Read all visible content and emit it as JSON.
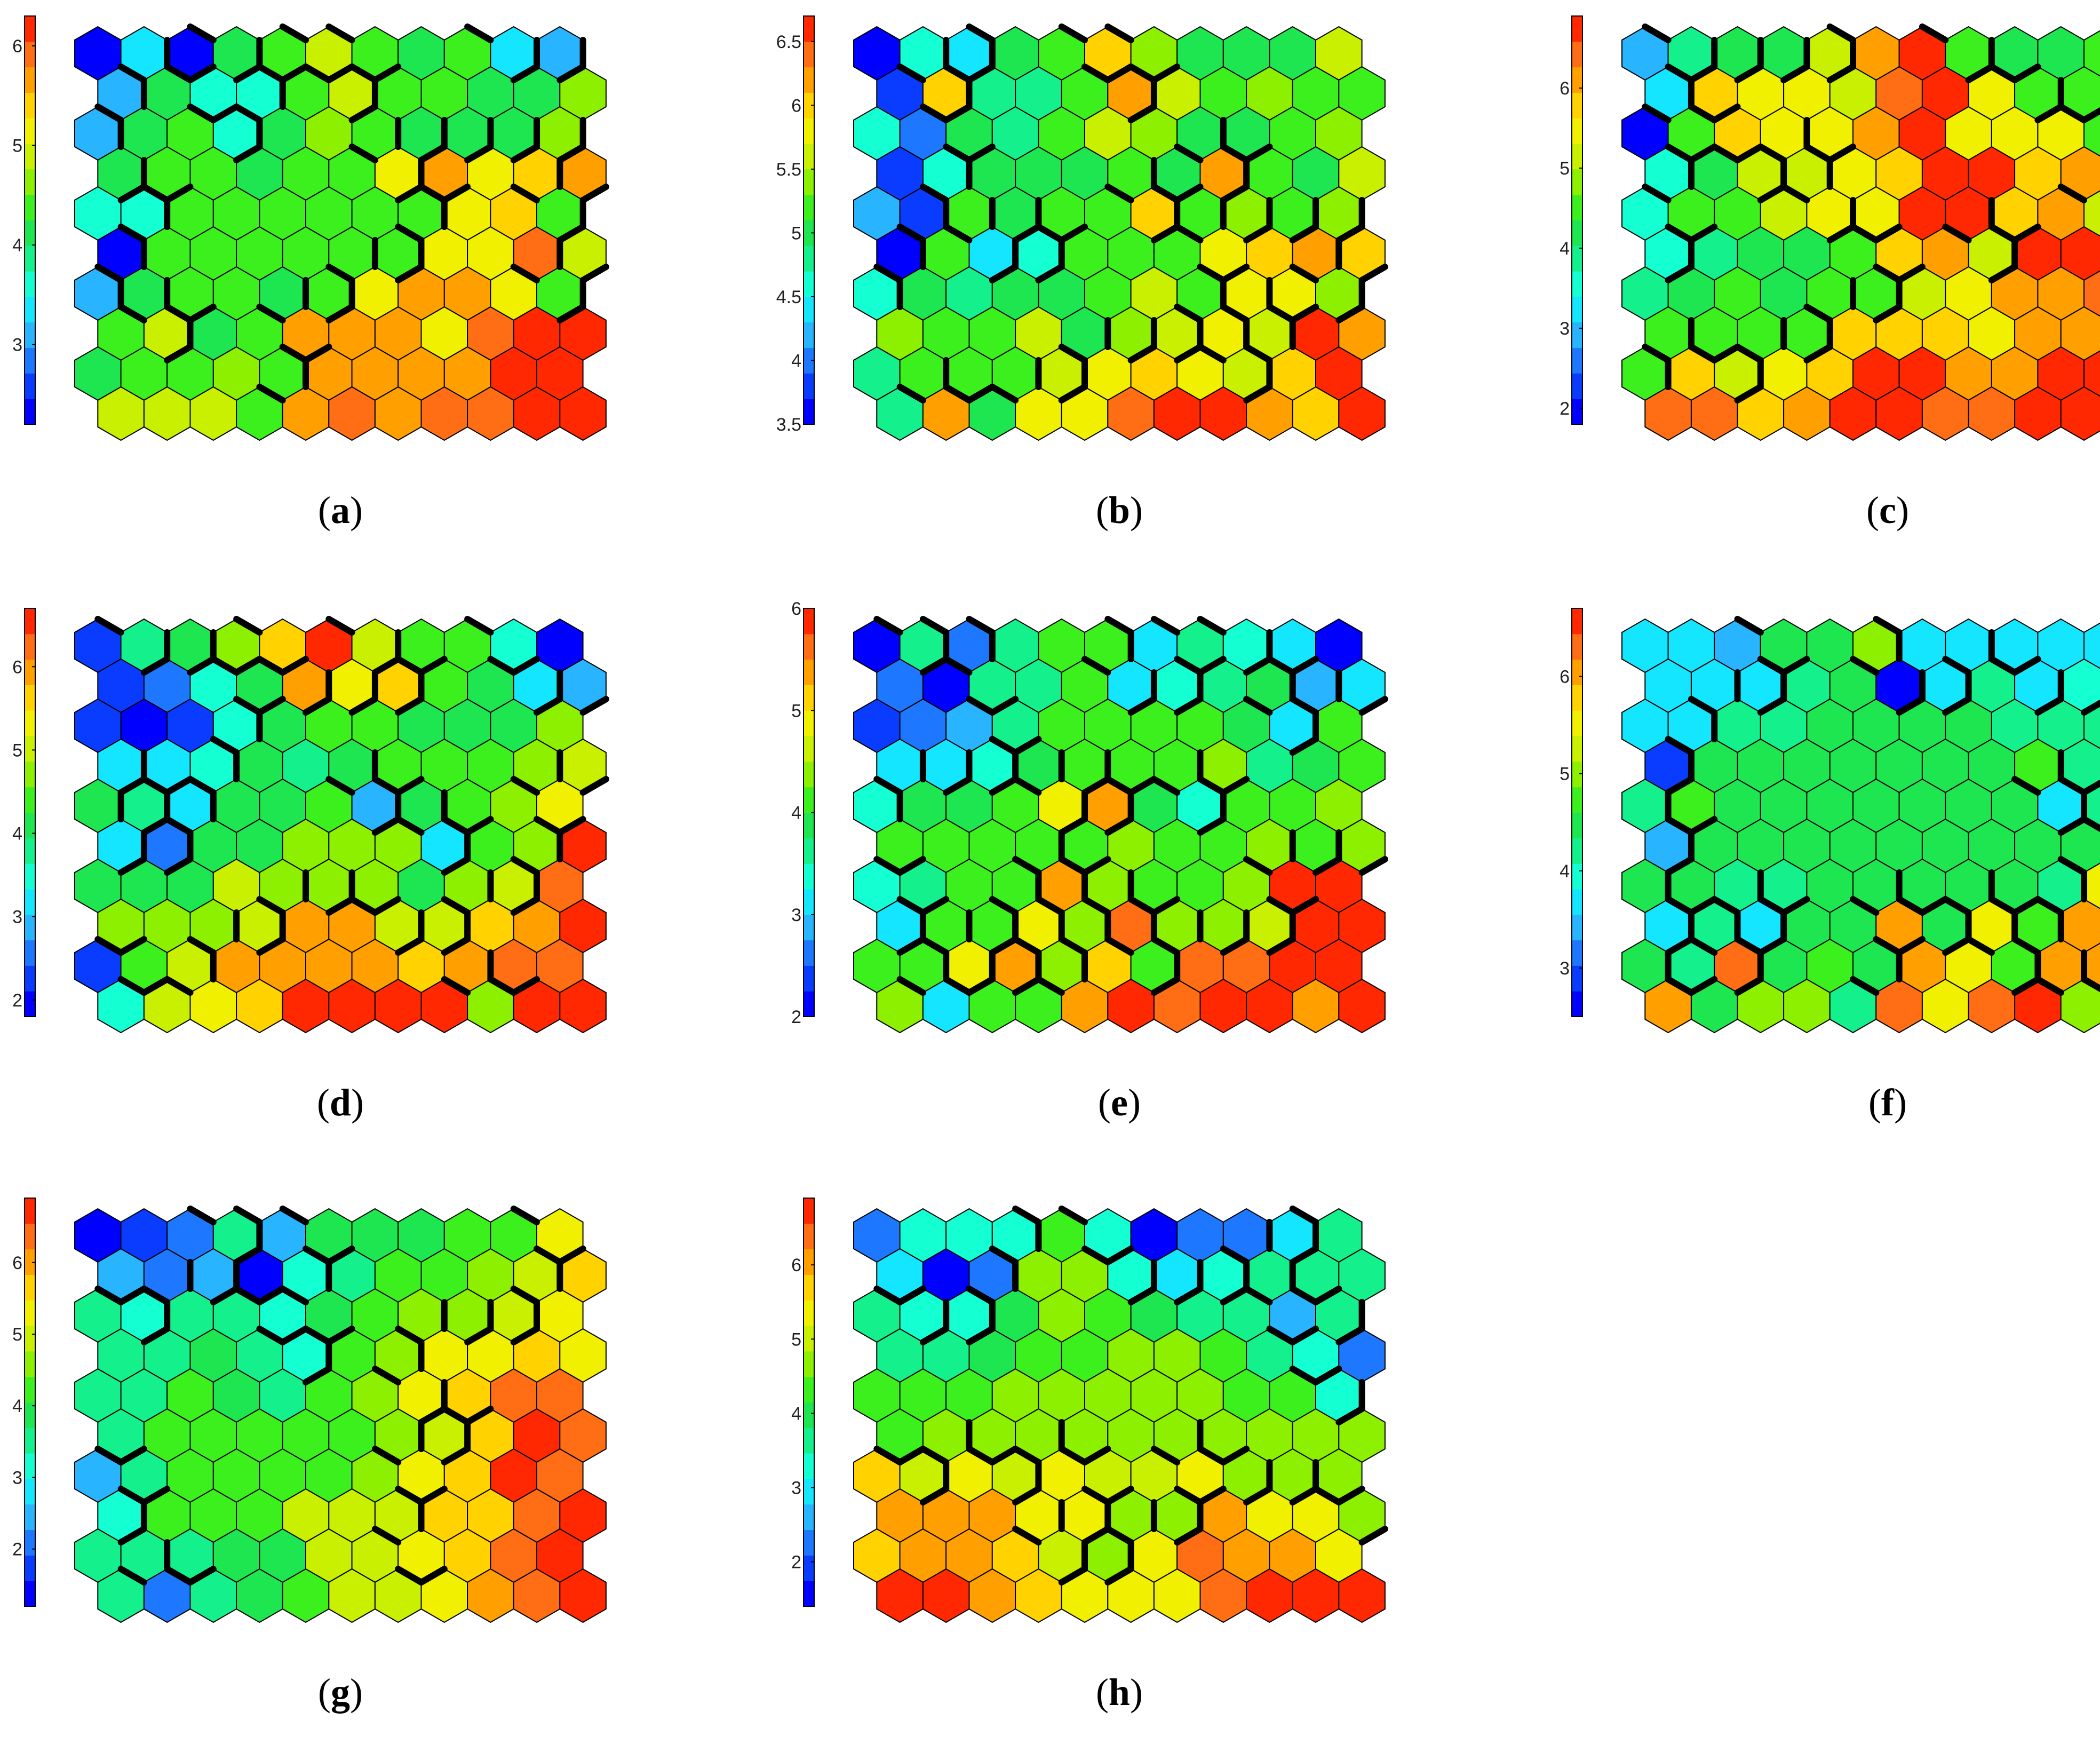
{
  "colormap": [
    "#0000ff",
    "#0a3cff",
    "#1e78ff",
    "#28b4ff",
    "#14e6ff",
    "#14ffd2",
    "#14f08c",
    "#1ee650",
    "#3cf01e",
    "#8cf000",
    "#c8f000",
    "#f0f000",
    "#ffd200",
    "#ffa000",
    "#ff6e14",
    "#ff2800"
  ],
  "boundary_color": "#000000",
  "panels": [
    {
      "id": "a",
      "caption": "a",
      "min": 2.2,
      "max": 6.3,
      "ticks": [
        "3",
        "4",
        "5",
        "6"
      ],
      "tick_values": [
        3,
        4,
        5,
        6
      ],
      "grid": [
        [
          2.2,
          3.3,
          2.2,
          4.2,
          4.5,
          5.0,
          4.5,
          4.0,
          4.5,
          3.3,
          3.0
        ],
        [
          3.0,
          4.0,
          3.6,
          3.6,
          4.5,
          5.0,
          4.5,
          4.5,
          4.2,
          4.0,
          4.6
        ],
        [
          3.0,
          4.0,
          4.3,
          3.6,
          4.2,
          4.6,
          4.5,
          4.2,
          4.0,
          4.2,
          4.6
        ],
        [
          4.0,
          4.3,
          4.3,
          4.0,
          4.3,
          4.4,
          5.2,
          5.6,
          5.2,
          5.5,
          5.6
        ],
        [
          3.6,
          3.6,
          4.3,
          4.3,
          4.4,
          4.4,
          4.5,
          4.4,
          5.2,
          5.3,
          4.4
        ],
        [
          2.2,
          4.4,
          4.4,
          4.4,
          4.5,
          4.5,
          4.5,
          5.2,
          5.2,
          5.8,
          5.0
        ],
        [
          3.0,
          4.0,
          4.4,
          4.4,
          4.0,
          4.5,
          5.2,
          5.6,
          5.7,
          5.2,
          4.5
        ],
        [
          4.4,
          5.0,
          4.2,
          4.4,
          5.6,
          5.7,
          5.6,
          5.2,
          5.8,
          6.2,
          6.3
        ],
        [
          4.0,
          4.4,
          4.4,
          4.6,
          4.4,
          5.7,
          5.6,
          5.7,
          5.7,
          6.2,
          6.3
        ],
        [
          4.8,
          4.8,
          4.8,
          4.5,
          5.6,
          5.9,
          5.6,
          5.9,
          5.8,
          6.3,
          6.3
        ]
      ]
    },
    {
      "id": "b",
      "caption": "b",
      "min": 3.5,
      "max": 6.7,
      "ticks": [
        "3.5",
        "4",
        "4.5",
        "5",
        "5.5",
        "6",
        "6.5"
      ],
      "tick_values": [
        3.5,
        4,
        4.5,
        5,
        5.5,
        6,
        6.5
      ],
      "grid": [
        [
          3.5,
          4.6,
          4.4,
          5.0,
          5.2,
          6.1,
          5.4,
          5.0,
          5.1,
          5.0,
          5.6
        ],
        [
          3.7,
          6.0,
          4.8,
          4.8,
          5.3,
          6.3,
          5.5,
          5.2,
          5.4,
          5.2,
          5.2
        ],
        [
          4.6,
          4.0,
          5.0,
          4.8,
          5.3,
          5.5,
          5.4,
          5.0,
          5.0,
          5.2,
          5.4
        ],
        [
          3.7,
          4.6,
          5.0,
          5.0,
          5.0,
          5.3,
          5.0,
          6.3,
          5.2,
          5.0,
          5.6
        ],
        [
          4.2,
          3.8,
          5.2,
          5.0,
          5.2,
          5.2,
          6.0,
          5.2,
          5.4,
          5.2,
          5.4
        ],
        [
          3.6,
          5.2,
          4.4,
          4.6,
          5.2,
          5.2,
          5.2,
          5.8,
          6.1,
          6.2,
          6.1
        ],
        [
          4.6,
          5.0,
          4.8,
          5.0,
          5.0,
          5.2,
          5.6,
          5.2,
          5.8,
          5.7,
          5.4
        ],
        [
          5.4,
          5.2,
          5.2,
          5.5,
          5.0,
          5.4,
          5.5,
          5.8,
          5.6,
          6.5,
          6.3
        ],
        [
          4.8,
          5.2,
          5.2,
          5.2,
          5.5,
          5.8,
          6.0,
          5.8,
          5.6,
          6.1,
          6.6
        ],
        [
          4.8,
          6.3,
          5.0,
          5.8,
          5.8,
          6.4,
          6.5,
          6.7,
          6.3,
          6.0,
          6.7
        ]
      ]
    },
    {
      "id": "c",
      "caption": "c",
      "min": 1.8,
      "max": 6.9,
      "ticks": [
        "2",
        "3",
        "4",
        "5",
        "6"
      ],
      "tick_values": [
        2,
        3,
        4,
        5,
        6
      ],
      "grid": [
        [
          2.8,
          3.8,
          4.3,
          4.2,
          5.2,
          6.0,
          6.6,
          4.6,
          4.2,
          4.3,
          4.6
        ],
        [
          3.3,
          5.8,
          5.6,
          5.6,
          5.3,
          6.3,
          6.9,
          5.5,
          4.4,
          4.4,
          5.0
        ],
        [
          1.9,
          4.6,
          5.8,
          5.6,
          5.6,
          6.2,
          6.6,
          5.4,
          5.4,
          5.4,
          4.6
        ],
        [
          3.4,
          4.2,
          5.3,
          5.0,
          5.6,
          5.9,
          6.6,
          6.6,
          5.8,
          6.2,
          6.6
        ],
        [
          3.6,
          4.4,
          4.6,
          5.0,
          5.6,
          5.6,
          6.9,
          6.6,
          5.7,
          6.2,
          5.0
        ],
        [
          3.6,
          4.0,
          4.3,
          4.3,
          4.6,
          5.8,
          6.2,
          5.0,
          6.6,
          6.8,
          6.9
        ],
        [
          3.8,
          4.3,
          4.4,
          4.3,
          4.6,
          4.6,
          5.3,
          5.4,
          6.2,
          6.2,
          6.4
        ],
        [
          4.4,
          4.4,
          4.4,
          4.4,
          5.8,
          5.8,
          5.8,
          5.6,
          6.0,
          6.2,
          6.8
        ],
        [
          4.6,
          5.8,
          5.2,
          5.4,
          5.8,
          6.6,
          6.6,
          6.2,
          6.2,
          6.6,
          6.8
        ],
        [
          6.4,
          6.4,
          5.8,
          6.2,
          6.9,
          6.6,
          6.3,
          6.4,
          6.8,
          6.8,
          6.9
        ]
      ]
    },
    {
      "id": "d",
      "caption": "d",
      "min": 1.8,
      "max": 6.7,
      "ticks": [
        "2",
        "3",
        "4",
        "5",
        "6"
      ],
      "tick_values": [
        2,
        3,
        4,
        5,
        6
      ],
      "grid": [
        [
          2.4,
          3.8,
          4.2,
          4.6,
          5.6,
          6.6,
          5.0,
          4.4,
          4.5,
          3.4,
          2.0
        ],
        [
          2.4,
          2.6,
          3.6,
          4.0,
          6.0,
          5.2,
          5.6,
          4.4,
          4.0,
          3.2,
          2.8
        ],
        [
          2.4,
          2.0,
          2.4,
          3.4,
          4.2,
          4.4,
          4.4,
          4.2,
          4.0,
          4.0,
          4.6
        ],
        [
          3.2,
          3.2,
          3.4,
          4.2,
          3.8,
          4.2,
          4.4,
          4.4,
          4.4,
          4.8,
          5.0
        ],
        [
          4.0,
          3.8,
          3.2,
          4.2,
          4.0,
          4.4,
          3.0,
          4.2,
          4.4,
          4.8,
          5.4
        ],
        [
          3.2,
          2.6,
          4.2,
          4.2,
          4.6,
          4.8,
          4.6,
          3.2,
          4.4,
          4.6,
          6.4
        ],
        [
          4.0,
          4.2,
          4.2,
          5.0,
          4.6,
          4.6,
          4.8,
          4.2,
          4.8,
          5.0,
          6.2
        ],
        [
          4.6,
          4.6,
          4.8,
          5.0,
          5.8,
          6.0,
          5.0,
          5.0,
          5.6,
          6.0,
          6.7
        ],
        [
          2.4,
          4.4,
          5.0,
          6.0,
          5.8,
          6.0,
          6.0,
          5.6,
          5.8,
          6.2,
          6.2
        ],
        [
          3.6,
          5.0,
          5.2,
          5.6,
          6.6,
          6.4,
          6.4,
          6.7,
          4.8,
          6.7,
          6.7
        ]
      ]
    },
    {
      "id": "e",
      "caption": "e",
      "min": 2.0,
      "max": 6.0,
      "ticks": [
        "2",
        "3",
        "4",
        "5",
        "6"
      ],
      "tick_values": [
        2,
        3,
        4,
        5,
        6
      ],
      "grid": [
        [
          2.0,
          3.6,
          2.6,
          3.6,
          4.2,
          4.2,
          3.2,
          3.6,
          3.4,
          3.2,
          2.0
        ],
        [
          2.6,
          2.0,
          3.6,
          3.6,
          4.0,
          3.2,
          3.4,
          3.6,
          3.8,
          2.8,
          3.2
        ],
        [
          2.4,
          2.6,
          2.8,
          3.6,
          4.0,
          4.2,
          4.2,
          4.2,
          3.8,
          3.2,
          4.0
        ],
        [
          3.2,
          3.2,
          3.4,
          3.8,
          4.0,
          4.2,
          4.2,
          4.4,
          3.6,
          3.8,
          4.2
        ],
        [
          3.4,
          3.8,
          3.8,
          4.2,
          4.8,
          5.4,
          3.8,
          3.4,
          4.2,
          4.0,
          4.4
        ],
        [
          4.0,
          4.2,
          4.0,
          4.0,
          4.2,
          4.4,
          4.2,
          4.2,
          4.4,
          4.2,
          4.4
        ],
        [
          3.4,
          3.6,
          4.0,
          4.2,
          5.4,
          4.4,
          4.0,
          4.0,
          4.4,
          5.8,
          6.0
        ],
        [
          3.2,
          4.2,
          4.0,
          4.8,
          4.4,
          5.6,
          4.4,
          4.4,
          4.6,
          5.8,
          5.8
        ],
        [
          4.0,
          4.2,
          4.8,
          5.4,
          4.4,
          5.0,
          4.2,
          5.6,
          5.6,
          6.0,
          6.0
        ],
        [
          4.4,
          3.2,
          4.2,
          4.0,
          5.4,
          6.0,
          5.6,
          5.8,
          6.0,
          5.4,
          6.0
        ]
      ]
    },
    {
      "id": "f",
      "caption": "f",
      "min": 2.5,
      "max": 6.7,
      "ticks": [
        "3",
        "4",
        "5",
        "6"
      ],
      "tick_values": [
        3,
        4,
        5,
        6
      ],
      "grid": [
        [
          3.8,
          3.6,
          3.4,
          4.6,
          4.6,
          5.0,
          3.6,
          3.8,
          3.8,
          3.8,
          3.8
        ],
        [
          3.8,
          3.8,
          3.8,
          4.2,
          4.6,
          2.5,
          3.6,
          4.2,
          3.8,
          4.0,
          3.8
        ],
        [
          3.6,
          3.6,
          4.2,
          4.2,
          4.6,
          4.6,
          4.6,
          4.6,
          4.2,
          4.2,
          4.2
        ],
        [
          3.0,
          4.6,
          4.6,
          4.6,
          4.6,
          4.6,
          4.6,
          4.4,
          4.8,
          4.2,
          4.4
        ],
        [
          4.2,
          4.8,
          4.6,
          4.4,
          4.6,
          4.6,
          4.6,
          4.4,
          4.6,
          3.6,
          4.2
        ],
        [
          3.4,
          4.6,
          4.4,
          4.4,
          4.6,
          4.6,
          4.6,
          4.6,
          4.4,
          4.4,
          5.8
        ],
        [
          4.4,
          4.4,
          4.2,
          4.2,
          4.4,
          4.4,
          4.4,
          4.4,
          4.4,
          4.2,
          5.4
        ],
        [
          3.6,
          4.2,
          3.8,
          4.4,
          4.6,
          6.0,
          4.6,
          5.6,
          4.8,
          6.0,
          5.6
        ],
        [
          4.4,
          4.2,
          6.2,
          4.6,
          4.8,
          4.6,
          6.0,
          5.4,
          4.8,
          6.0,
          6.0
        ],
        [
          6.0,
          4.4,
          5.0,
          5.0,
          4.2,
          6.2,
          5.6,
          6.2,
          6.6,
          5.0,
          6.7
        ]
      ]
    },
    {
      "id": "g",
      "caption": "g",
      "min": 1.2,
      "max": 6.9,
      "ticks": [
        "2",
        "3",
        "4",
        "5",
        "6"
      ],
      "tick_values": [
        2,
        3,
        4,
        5,
        6
      ],
      "grid": [
        [
          1.2,
          1.8,
          2.0,
          3.4,
          2.6,
          3.8,
          4.0,
          4.0,
          4.2,
          4.4,
          5.4
        ],
        [
          2.6,
          2.0,
          2.4,
          1.4,
          3.0,
          3.6,
          4.2,
          4.4,
          4.6,
          5.0,
          5.8
        ],
        [
          3.6,
          3.0,
          3.4,
          3.4,
          3.0,
          3.8,
          4.2,
          4.6,
          4.6,
          5.0,
          5.2
        ],
        [
          3.6,
          3.6,
          3.8,
          3.4,
          3.2,
          4.2,
          4.6,
          5.4,
          5.4,
          5.6,
          5.4
        ],
        [
          3.4,
          3.6,
          4.2,
          4.0,
          3.6,
          4.2,
          4.6,
          5.4,
          5.8,
          6.4,
          6.4
        ],
        [
          3.4,
          4.2,
          4.4,
          4.2,
          4.2,
          4.4,
          4.6,
          5.0,
          5.6,
          6.9,
          6.4
        ],
        [
          2.4,
          3.6,
          4.4,
          4.2,
          4.2,
          4.4,
          4.6,
          5.2,
          5.8,
          6.9,
          6.2
        ],
        [
          3.2,
          4.2,
          4.2,
          4.2,
          4.8,
          4.8,
          5.0,
          5.6,
          5.8,
          6.2,
          6.6
        ],
        [
          3.6,
          3.6,
          3.6,
          4.0,
          4.0,
          5.0,
          5.0,
          5.4,
          5.8,
          6.2,
          6.8
        ],
        [
          3.4,
          2.0,
          3.4,
          3.8,
          4.2,
          4.8,
          5.0,
          5.2,
          6.0,
          6.4,
          6.8
        ]
      ]
    },
    {
      "id": "h",
      "caption": "h",
      "min": 1.4,
      "max": 6.9,
      "ticks": [
        "2",
        "3",
        "4",
        "5",
        "6"
      ],
      "tick_values": [
        2,
        3,
        4,
        5,
        6
      ],
      "grid": [
        [
          2.4,
          3.2,
          3.2,
          3.4,
          4.4,
          3.2,
          1.6,
          2.2,
          2.4,
          3.0,
          3.8
        ],
        [
          2.8,
          1.6,
          2.4,
          4.6,
          4.6,
          3.4,
          3.0,
          3.4,
          3.6,
          3.6,
          3.8
        ],
        [
          3.6,
          3.2,
          3.4,
          4.0,
          4.6,
          4.4,
          4.0,
          3.8,
          3.6,
          2.6,
          3.6
        ],
        [
          3.8,
          3.8,
          4.0,
          4.4,
          4.4,
          4.6,
          4.6,
          4.4,
          3.8,
          3.2,
          2.2
        ],
        [
          4.2,
          4.2,
          4.2,
          4.6,
          4.6,
          4.8,
          4.6,
          4.6,
          4.4,
          4.2,
          3.4
        ],
        [
          4.2,
          4.6,
          4.8,
          4.6,
          4.6,
          4.6,
          4.8,
          4.8,
          4.6,
          4.6,
          4.6
        ],
        [
          5.8,
          5.0,
          5.2,
          5.0,
          5.2,
          5.0,
          5.0,
          5.2,
          4.8,
          4.8,
          4.6
        ],
        [
          6.2,
          6.0,
          6.0,
          5.4,
          5.2,
          4.6,
          4.8,
          6.2,
          5.2,
          5.2,
          4.8
        ],
        [
          5.6,
          6.0,
          6.0,
          5.6,
          5.0,
          4.6,
          5.4,
          6.4,
          6.2,
          6.0,
          5.4
        ],
        [
          6.6,
          6.8,
          6.0,
          5.6,
          5.2,
          5.2,
          5.4,
          6.4,
          6.6,
          6.6,
          6.9
        ]
      ]
    }
  ],
  "chart_data": [
    {
      "type": "heatmap",
      "panel": "a",
      "value_range": [
        2.2,
        6.3
      ],
      "colorbar_ticks": [
        3,
        4,
        5,
        6
      ]
    },
    {
      "type": "heatmap",
      "panel": "b",
      "value_range": [
        3.5,
        6.7
      ],
      "colorbar_ticks": [
        3.5,
        4,
        4.5,
        5,
        5.5,
        6,
        6.5
      ]
    },
    {
      "type": "heatmap",
      "panel": "c",
      "value_range": [
        1.8,
        6.9
      ],
      "colorbar_ticks": [
        2,
        3,
        4,
        5,
        6
      ]
    },
    {
      "type": "heatmap",
      "panel": "d",
      "value_range": [
        1.8,
        6.7
      ],
      "colorbar_ticks": [
        2,
        3,
        4,
        5,
        6
      ]
    },
    {
      "type": "heatmap",
      "panel": "e",
      "value_range": [
        2,
        6
      ],
      "colorbar_ticks": [
        2,
        3,
        4,
        5,
        6
      ]
    },
    {
      "type": "heatmap",
      "panel": "f",
      "value_range": [
        2.5,
        6.7
      ],
      "colorbar_ticks": [
        3,
        4,
        5,
        6
      ]
    },
    {
      "type": "heatmap",
      "panel": "g",
      "value_range": [
        1.2,
        6.9
      ],
      "colorbar_ticks": [
        2,
        3,
        4,
        5,
        6
      ]
    },
    {
      "type": "heatmap",
      "panel": "h",
      "value_range": [
        1.4,
        6.9
      ],
      "colorbar_ticks": [
        2,
        3,
        4,
        5,
        6
      ]
    }
  ]
}
